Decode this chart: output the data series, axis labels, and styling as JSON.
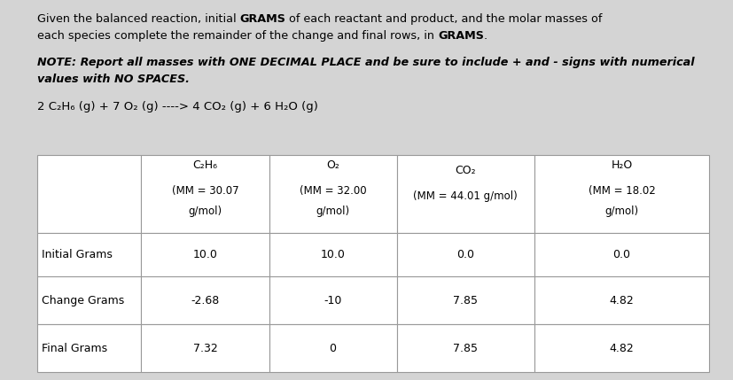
{
  "bg_color": "#d4d4d4",
  "table_bg": "#ffffff",
  "border_color": "#999999",
  "text_color": "#000000",
  "reaction": "2 C₂H₆ (g) + 7 O₂ (g) ----> 4 CO₂ (g) + 6 H₂O (g)",
  "col_headers_line1": [
    "C₂H₆",
    "O₂",
    "CO₂",
    "H₂O"
  ],
  "col_headers_line2": [
    "(MM = 30.07",
    "(MM = 32.00",
    "(MM = 44.01 g/mol)",
    "(MM = 18.02"
  ],
  "col_headers_line3": [
    "g/mol)",
    "g/mol)",
    "",
    "g/mol)"
  ],
  "row_labels": [
    "Initial Grams",
    "Change Grams",
    "Final Grams"
  ],
  "table_data": [
    [
      "10.0",
      "10.0",
      "0.0",
      "0.0"
    ],
    [
      "-2.68",
      "-10",
      "7.85",
      "4.82"
    ],
    [
      "7.32",
      "0",
      "7.85",
      "4.82"
    ]
  ],
  "text_block": [
    {
      "parts": [
        {
          "text": "Given the balanced reaction, initial ",
          "bold": false
        },
        {
          "text": "GRAMS",
          "bold": true
        },
        {
          "text": " of each reactant and product, and the molar masses of",
          "bold": false
        }
      ]
    },
    {
      "parts": [
        {
          "text": "each species complete the remainder of the change and final rows, in ",
          "bold": false
        },
        {
          "text": "GRAMS",
          "bold": true
        },
        {
          "text": ".",
          "bold": false
        }
      ]
    },
    {
      "parts": []
    },
    {
      "parts": [
        {
          "text": "NOTE: Report all masses with ONE DECIMAL PLACE ",
          "bold": true,
          "italic": true
        },
        {
          "text": "and be sure to include + and - signs with numerical",
          "bold": true,
          "italic": true
        }
      ]
    },
    {
      "parts": [
        {
          "text": "values with NO SPACES.",
          "bold": true,
          "italic": true
        }
      ]
    }
  ]
}
